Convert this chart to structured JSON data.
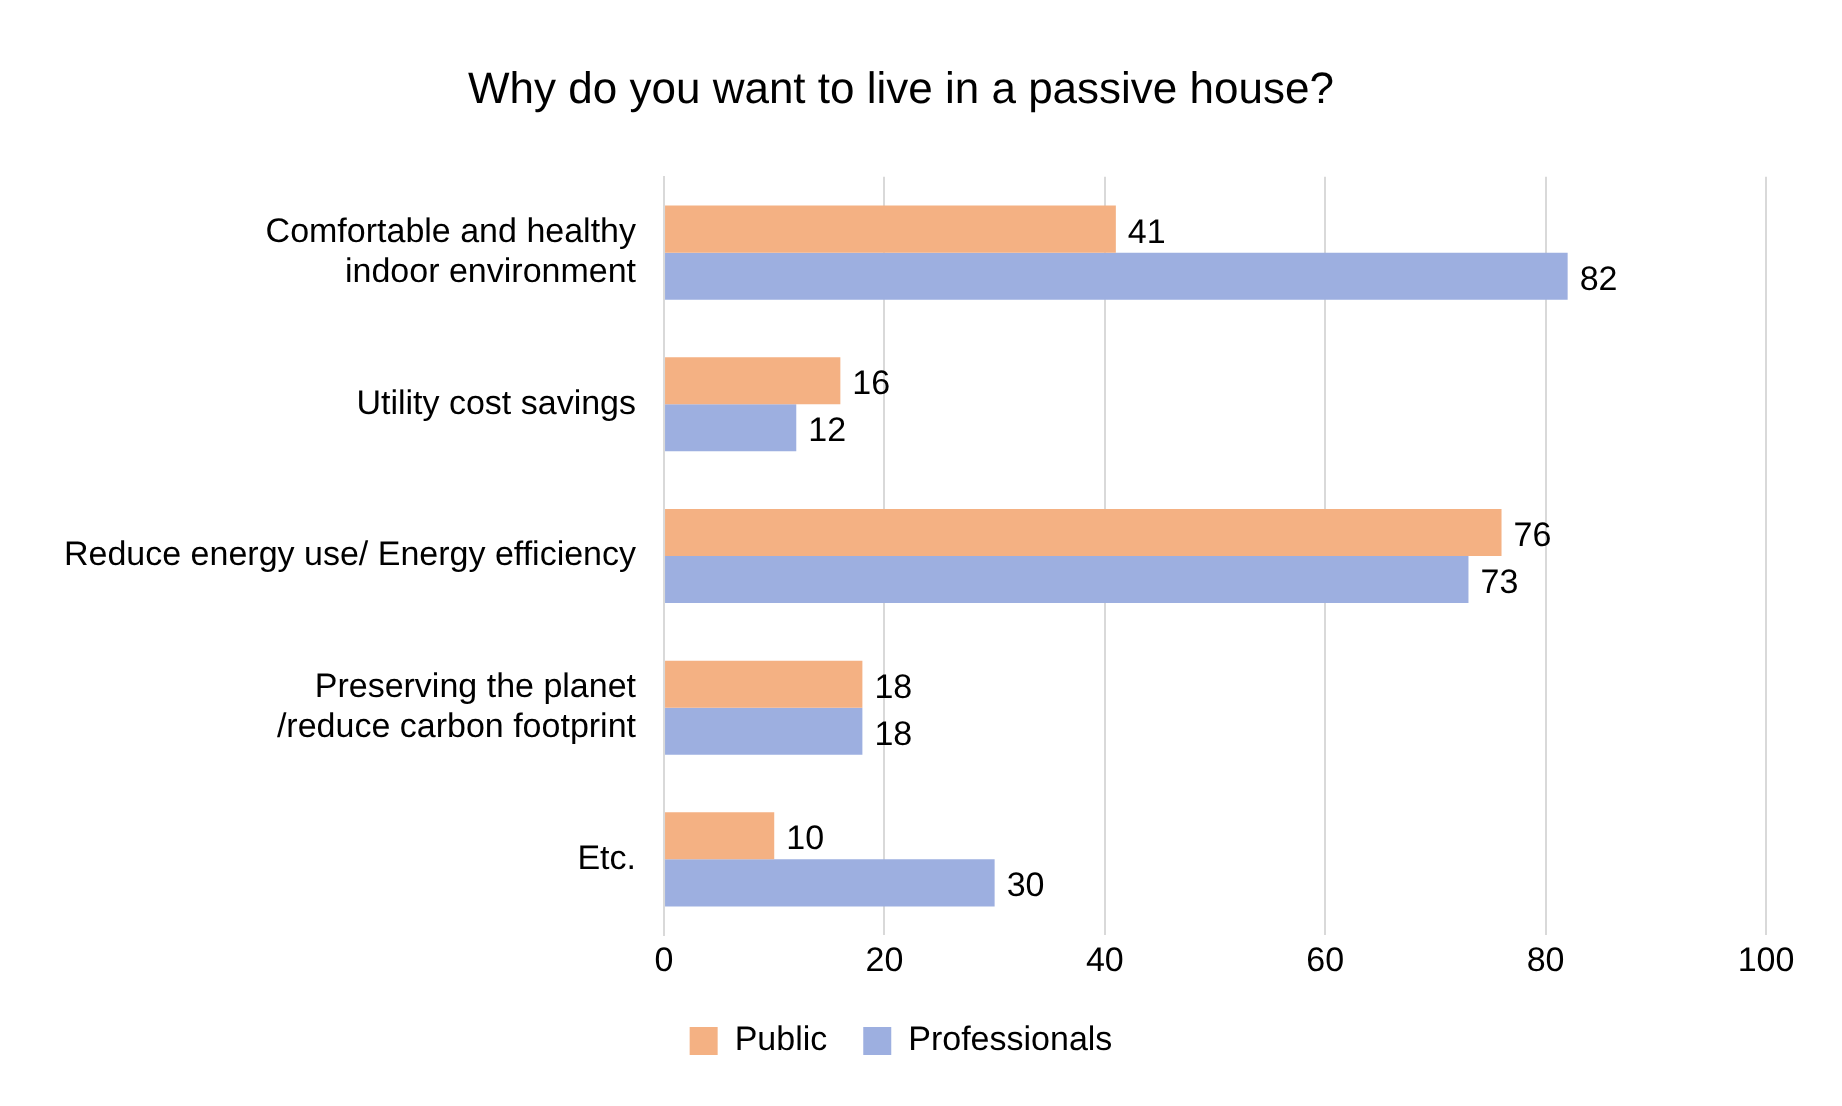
{
  "chart_data": {
    "type": "bar",
    "orientation": "horizontal",
    "title": "Why do you want to live in a passive house?",
    "categories": [
      "Comfortable and healthy indoor environment",
      "Utility cost savings",
      "Reduce energy use/ Energy efficiency",
      "Preserving the planet /reduce carbon footprint",
      "Etc."
    ],
    "series": [
      {
        "name": "Public",
        "color": "#f4b183",
        "values": [
          41,
          16,
          76,
          18,
          10
        ]
      },
      {
        "name": "Professionals",
        "color": "#9dafe0",
        "values": [
          82,
          12,
          73,
          18,
          30
        ]
      }
    ],
    "xlim": [
      0,
      100
    ],
    "xticks": [
      0,
      20,
      40,
      60,
      80,
      100
    ],
    "grid": "x",
    "legend": "bottom",
    "data_labels": true
  }
}
